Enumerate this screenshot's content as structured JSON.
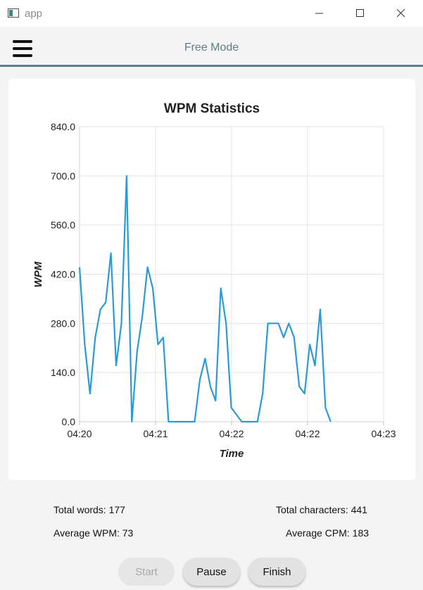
{
  "window": {
    "title": "app",
    "icon": "app-window-icon",
    "controls": [
      "minimize-icon",
      "maximize-icon",
      "close-icon"
    ]
  },
  "header": {
    "menu_icon": "hamburger-menu-icon",
    "title": "Free Mode",
    "accent_color": "#5f7d85"
  },
  "chart_data": {
    "type": "line",
    "title": "WPM Statistics",
    "xlabel": "Time",
    "ylabel": "WPM",
    "ylim": [
      0,
      840
    ],
    "yticks": [
      "0.0",
      "140.0",
      "280.0",
      "420.0",
      "560.0",
      "700.0",
      "840.0"
    ],
    "xticks": [
      "04:20",
      "04:21",
      "04:22",
      "04:22",
      "04:23"
    ],
    "grid": true,
    "legend": "none",
    "line_color": "#2b9bd8",
    "series": [
      {
        "values": [
          440,
          220,
          80,
          240,
          320,
          340,
          480,
          160,
          280,
          700,
          0,
          200,
          300,
          440,
          380,
          220,
          240,
          0,
          0,
          0,
          0,
          0,
          0,
          120,
          180,
          100,
          60,
          380,
          280,
          40,
          20,
          0,
          0,
          0,
          0,
          80,
          280,
          280,
          280,
          240,
          280,
          240,
          100,
          80,
          220,
          160,
          320,
          40,
          0
        ]
      }
    ]
  },
  "stats": {
    "total_words": "Total words: 177",
    "total_characters": "Total characters: 441",
    "average_wpm": "Average WPM: 73",
    "average_cpm": "Average CPM: 183"
  },
  "controls": {
    "start_label": "Start",
    "pause_label": "Pause",
    "finish_label": "Finish"
  }
}
